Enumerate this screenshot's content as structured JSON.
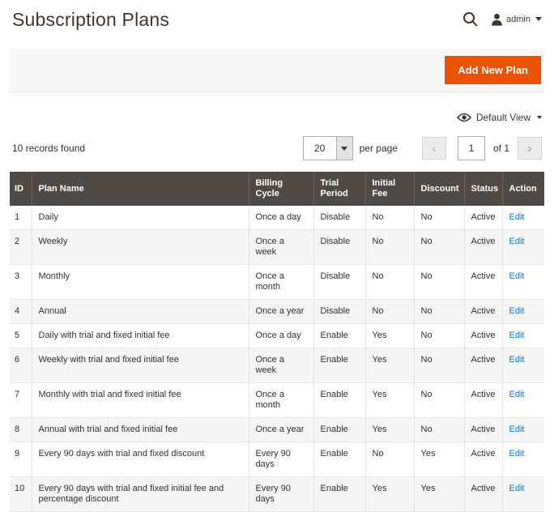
{
  "page": {
    "title": "Subscription Plans",
    "records_found": "10 records found"
  },
  "header": {
    "user_label": "admin",
    "icons": [
      "search-icon",
      "user-icon",
      "caret-down-icon"
    ]
  },
  "toolbar": {
    "add_button_label": "Add New Plan"
  },
  "view_control": {
    "label": "Default View",
    "icons": [
      "eye-icon",
      "caret-down-icon"
    ]
  },
  "pagination": {
    "per_page_value": "20",
    "per_page_label": "per page",
    "current_page": "1",
    "of_label": "of 1",
    "prev_icon": "‹",
    "next_icon": "›"
  },
  "table": {
    "columns": [
      "ID",
      "Plan Name",
      "Billing Cycle",
      "Trial\nPeriod",
      "Initial\nFee",
      "Discount",
      "Status",
      "Action"
    ],
    "rows": [
      {
        "id": "1",
        "plan_name": "Daily",
        "billing_cycle": "Once a day",
        "trial_period": "Disable",
        "initial_fee": "No",
        "discount": "No",
        "status": "Active",
        "action": "Edit"
      },
      {
        "id": "2",
        "plan_name": "Weekly",
        "billing_cycle": "Once a\nweek",
        "trial_period": "Disable",
        "initial_fee": "No",
        "discount": "No",
        "status": "Active",
        "action": "Edit"
      },
      {
        "id": "3",
        "plan_name": "Monthly",
        "billing_cycle": "Once a\nmonth",
        "trial_period": "Disable",
        "initial_fee": "No",
        "discount": "No",
        "status": "Active",
        "action": "Edit"
      },
      {
        "id": "4",
        "plan_name": "Annual",
        "billing_cycle": "Once a year",
        "trial_period": "Disable",
        "initial_fee": "No",
        "discount": "No",
        "status": "Active",
        "action": "Edit"
      },
      {
        "id": "5",
        "plan_name": "Daily with trial and fixed initial fee",
        "billing_cycle": "Once a day",
        "trial_period": "Enable",
        "initial_fee": "Yes",
        "discount": "No",
        "status": "Active",
        "action": "Edit"
      },
      {
        "id": "6",
        "plan_name": "Weekly with trial and fixed initial fee",
        "billing_cycle": "Once a\nweek",
        "trial_period": "Enable",
        "initial_fee": "Yes",
        "discount": "No",
        "status": "Active",
        "action": "Edit"
      },
      {
        "id": "7",
        "plan_name": "Monthly with trial and fixed initial fee",
        "billing_cycle": "Once a\nmonth",
        "trial_period": "Enable",
        "initial_fee": "Yes",
        "discount": "No",
        "status": "Active",
        "action": "Edit"
      },
      {
        "id": "8",
        "plan_name": "Annual with trial and fixed initial fee",
        "billing_cycle": "Once a year",
        "trial_period": "Enable",
        "initial_fee": "Yes",
        "discount": "No",
        "status": "Active",
        "action": "Edit"
      },
      {
        "id": "9",
        "plan_name": "Every 90 days with trial and fixed discount",
        "billing_cycle": "Every 90\ndays",
        "trial_period": "Enable",
        "initial_fee": "No",
        "discount": "Yes",
        "status": "Active",
        "action": "Edit"
      },
      {
        "id": "10",
        "plan_name": "Every 90 days with trial and fixed initial fee and percentage discount",
        "billing_cycle": "Every 90\ndays",
        "trial_period": "Enable",
        "initial_fee": "Yes",
        "discount": "Yes",
        "status": "Active",
        "action": "Edit"
      }
    ]
  },
  "colors": {
    "accent_orange": "#eb5202",
    "grid_header_brown": "#514943",
    "link_blue": "#007bdb",
    "stripe_gray": "#f5f5f5",
    "toolbar_gray": "#f8f8f8"
  }
}
